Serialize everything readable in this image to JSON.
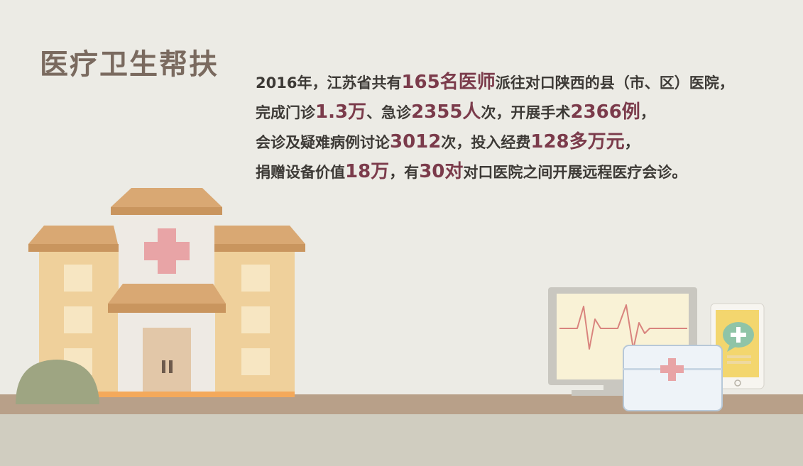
{
  "title": "医疗卫生帮扶",
  "lines": [
    [
      {
        "t": "2016年，江苏省共有",
        "hl": false
      },
      {
        "t": "165名医师",
        "hl": true
      },
      {
        "t": "派往对口陕西的县（市、区）医院，",
        "hl": false
      }
    ],
    [
      {
        "t": "完成门诊",
        "hl": false
      },
      {
        "t": "1.3万",
        "hl": true
      },
      {
        "t": "、急诊",
        "hl": false
      },
      {
        "t": "2355人",
        "hl": true
      },
      {
        "t": "次，开展手术",
        "hl": false
      },
      {
        "t": "2366例",
        "hl": true
      },
      {
        "t": "，",
        "hl": false
      }
    ],
    [
      {
        "t": "会诊及疑难病例讨论",
        "hl": false
      },
      {
        "t": "3012",
        "hl": true
      },
      {
        "t": "次，投入经费",
        "hl": false
      },
      {
        "t": "128多万元",
        "hl": true
      },
      {
        "t": "，",
        "hl": false
      }
    ],
    [
      {
        "t": "捐赠设备价值",
        "hl": false
      },
      {
        "t": "18万",
        "hl": true
      },
      {
        "t": "，有",
        "hl": false
      },
      {
        "t": "30对",
        "hl": true
      },
      {
        "t": "对口医院之间开展远程医疗会诊。",
        "hl": false
      }
    ]
  ],
  "colors": {
    "background": "#ecebe5",
    "title": "#7a6a5f",
    "text": "#3d3a36",
    "highlight": "#7b3b4b",
    "ground": "#b8a089",
    "floor": "#d0cdc0",
    "building": "#efd09b",
    "roof": "#d9a873",
    "cross": "#e8a4a6"
  },
  "icons": [
    "hospital-building-icon",
    "bush-icon",
    "ecg-monitor-icon",
    "first-aid-kit-icon",
    "smartphone-chat-icon",
    "medical-cross-icon"
  ]
}
